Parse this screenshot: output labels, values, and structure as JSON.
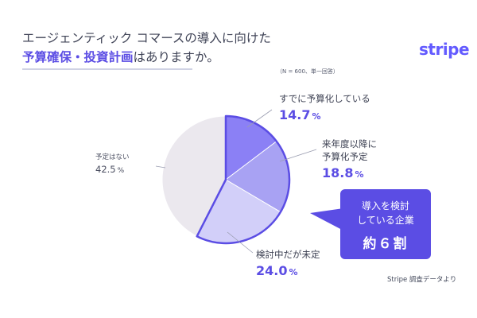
{
  "title": {
    "line1": "エージェンティック コマースの導入に向けた",
    "line2_highlight": "予算確保・投資計画",
    "line2_rest": "はありますか。"
  },
  "logo": "stripe",
  "note": "（N = 600、単一回答）",
  "source": "Stripe 調査データより",
  "callout": {
    "line1": "導入を検討",
    "line2": "している企業",
    "line3": "約６割"
  },
  "colors": {
    "accent": "#5b4de4",
    "slice_1": "#8b80f5",
    "slice_2": "#a8a2f3",
    "slice_3": "#d2cff9",
    "slice_4": "#ebe8ee",
    "outline": "#5b4de4"
  },
  "chart_data": {
    "type": "pie",
    "unit": "%",
    "slices": [
      {
        "label": "すでに予算化している",
        "value": 14.7
      },
      {
        "label": "来年度以降に\n予算化予定",
        "label_line1": "来年度以降に",
        "label_line2": "予算化予定",
        "value": 18.8
      },
      {
        "label": "検討中だが未定",
        "value": 24.0
      },
      {
        "label": "予定はない",
        "value": 42.5
      }
    ],
    "display_values": [
      "14.7",
      "18.8",
      "24.0",
      "42.5"
    ],
    "highlighted_group": [
      0,
      1,
      2
    ],
    "start_angle": "12 o'clock",
    "direction": "clockwise"
  }
}
